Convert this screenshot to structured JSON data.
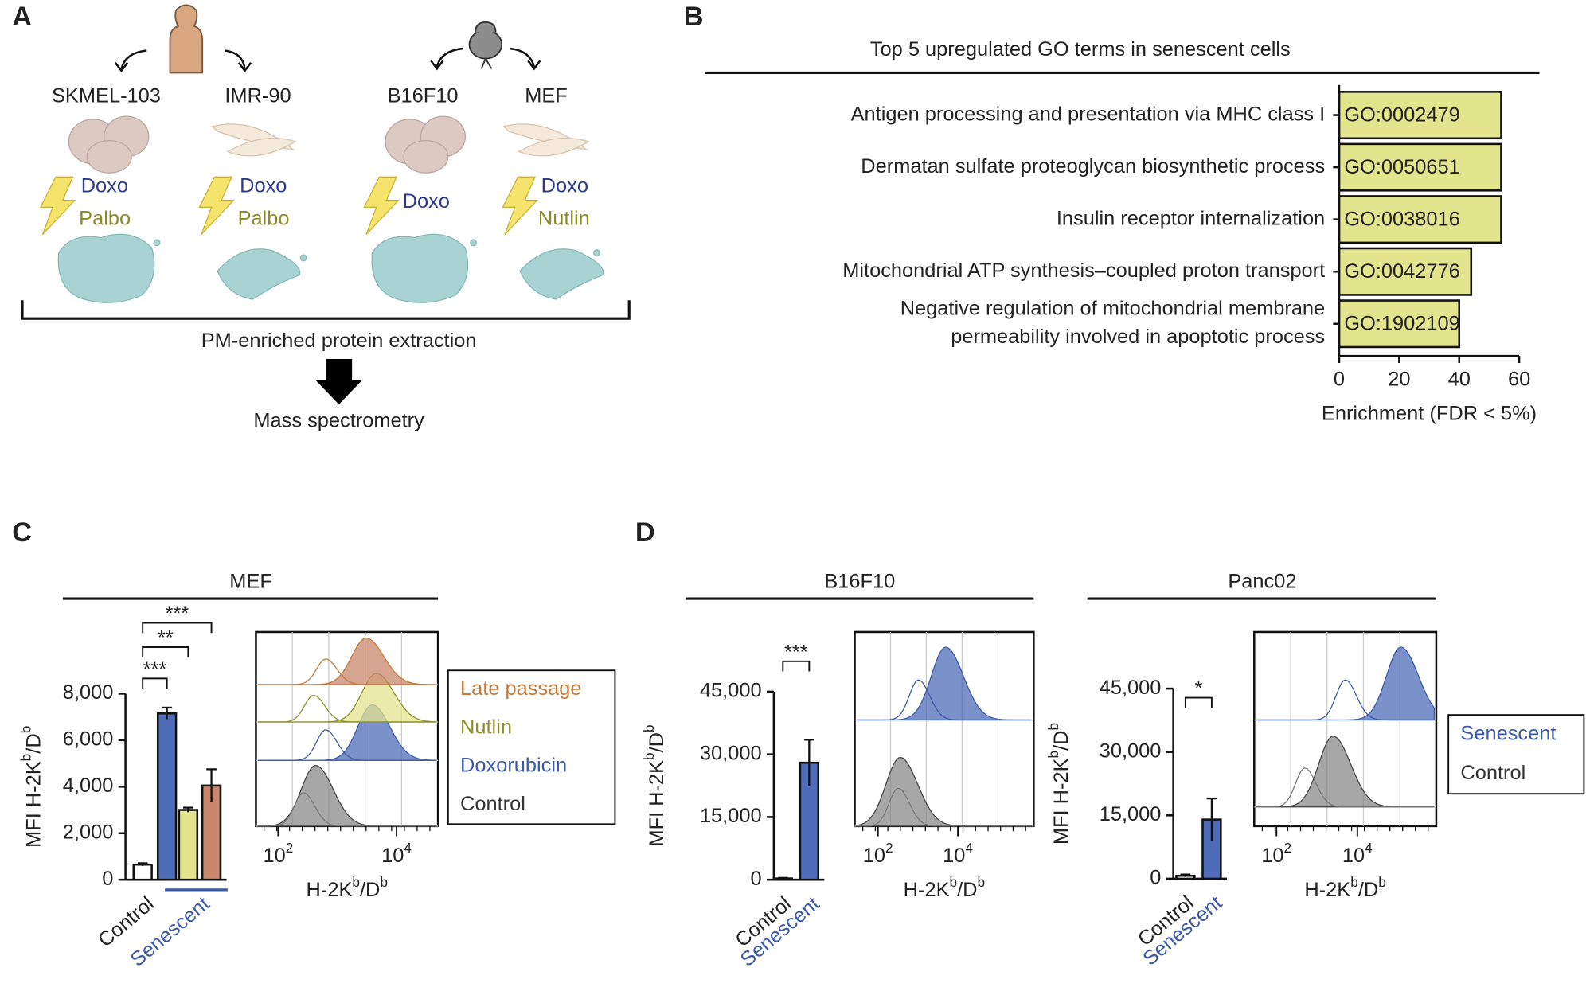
{
  "figure_labels": [
    "A",
    "B",
    "C",
    "D"
  ],
  "panel_a": {
    "cell_lines": [
      "SKMEL-103",
      "IMR-90",
      "B16F10",
      "MEF"
    ],
    "treatments": [
      [
        "Doxo",
        "Palbo"
      ],
      [
        "Doxo",
        "Palbo"
      ],
      [
        "Doxo"
      ],
      [
        "Doxo",
        "Nutlin"
      ]
    ],
    "step": "PM-enriched protein extraction",
    "output": "Mass spectrometry"
  },
  "chart_data": [
    {
      "type": "hbar",
      "title": "Top 5 upregulated GO terms in senescent cells",
      "categories": [
        [
          "Antigen processing and presentation via MHC class I"
        ],
        [
          "Dermatan sulfate proteoglycan biosynthetic process"
        ],
        [
          "Insulin receptor internalization"
        ],
        [
          "Mitochondrial ATP synthesis–coupled proton transport"
        ],
        [
          "Negative regulation of mitochondrial membrane",
          "permeability involved in apoptotic process"
        ]
      ],
      "values": [
        54,
        54,
        54,
        44,
        40
      ],
      "go_ids": [
        "GO:0002479",
        "GO:0050651",
        "GO:0038016",
        "GO:0042776",
        "GO:1902109"
      ],
      "color": "#e3e48e",
      "xlabel": "Enrichment (FDR < 5%)",
      "xlim": [
        0,
        60
      ],
      "xticks": [
        0,
        20,
        40,
        60
      ]
    },
    {
      "type": "bar",
      "title": "MEF",
      "group_labels": [
        {
          "text": "Control",
          "color": "#222222"
        },
        {
          "text": "Senescent",
          "color": "#3d5aa8"
        }
      ],
      "series": [
        {
          "name": "Control",
          "color": "#333333",
          "fill": "#ffffff",
          "values": [
            650
          ],
          "errors": [
            60
          ]
        },
        {
          "name": "Doxorubicin",
          "color": "#3d5aa8",
          "fill": "#4f6cb8",
          "values": [
            7150
          ],
          "errors": [
            250
          ]
        },
        {
          "name": "Nutlin",
          "color": "#8c8c2c",
          "fill": "#e3e48e",
          "values": [
            3000
          ],
          "errors": [
            100
          ]
        },
        {
          "name": "Late passage",
          "color": "#c07a3c",
          "fill": "#c8866a",
          "values": [
            4050
          ],
          "errors": [
            700
          ]
        }
      ],
      "significance": [
        "***",
        "**",
        "***"
      ],
      "ylabel": [
        "MFI H-2K",
        "b",
        "/D",
        "b"
      ],
      "ylim": [
        0,
        8000
      ],
      "yticks": [
        0,
        {
          "value": 2000,
          "label": "2,000"
        },
        {
          "value": 4000,
          "label": "4,000"
        },
        {
          "value": 6000,
          "label": "6,000"
        },
        {
          "value": 8000,
          "label": "8,000"
        }
      ],
      "legend": true,
      "flow": {
        "xlabel": [
          "H-2K",
          "b",
          "/D",
          "b"
        ],
        "xtick_labels": [
          [
            "10",
            "2"
          ],
          [
            "10",
            "4"
          ]
        ]
      }
    },
    {
      "type": "bar",
      "title": "B16F10",
      "group_labels": [
        {
          "text": "Control",
          "color": "#222222"
        },
        {
          "text": "Senescent",
          "color": "#3d5aa8"
        }
      ],
      "series": [
        {
          "name": "Control",
          "color": "#333333",
          "fill": "#ffffff",
          "values": [
            300
          ],
          "errors": [
            150
          ]
        },
        {
          "name": "Senescent",
          "color": "#3d5aa8",
          "fill": "#4f6cb8",
          "values": [
            28000
          ],
          "errors": [
            5500
          ]
        }
      ],
      "significance": [
        "***"
      ],
      "ylabel": [
        "MFI H-2K",
        "b",
        "/D",
        "b"
      ],
      "ylim": [
        0,
        45000
      ],
      "yticks": [
        0,
        {
          "value": 15000,
          "label": "15,000"
        },
        {
          "value": 30000,
          "label": "30,000"
        },
        {
          "value": 45000,
          "label": "45,000"
        }
      ],
      "legend": false,
      "flow": {
        "xlabel": [
          "H-2K",
          "b",
          "/D",
          "b"
        ],
        "xtick_labels": [
          [
            "10",
            "2"
          ],
          [
            "10",
            "4"
          ]
        ]
      }
    },
    {
      "type": "bar",
      "title": "Panc02",
      "group_labels": [
        {
          "text": "Control",
          "color": "#222222"
        },
        {
          "text": "Senescent",
          "color": "#3d5aa8"
        }
      ],
      "series": [
        {
          "name": "Control",
          "color": "#333333",
          "fill": "#ffffff",
          "values": [
            700
          ],
          "errors": [
            300
          ]
        },
        {
          "name": "Senescent",
          "color": "#3d5aa8",
          "fill": "#4f6cb8",
          "values": [
            14000
          ],
          "errors": [
            5000
          ]
        }
      ],
      "significance": [
        "*"
      ],
      "ylabel": [
        "MFI H-2K",
        "b",
        "/D",
        "b"
      ],
      "ylim": [
        0,
        45000
      ],
      "yticks": [
        0,
        {
          "value": 15000,
          "label": "15,000"
        },
        {
          "value": 30000,
          "label": "30,000"
        },
        {
          "value": 45000,
          "label": "45,000"
        }
      ],
      "legend": true,
      "flow": {
        "xlabel": [
          "H-2K",
          "b",
          "/D",
          "b"
        ],
        "xtick_labels": [
          [
            "10",
            "2"
          ],
          [
            "10",
            "4"
          ]
        ]
      }
    }
  ]
}
